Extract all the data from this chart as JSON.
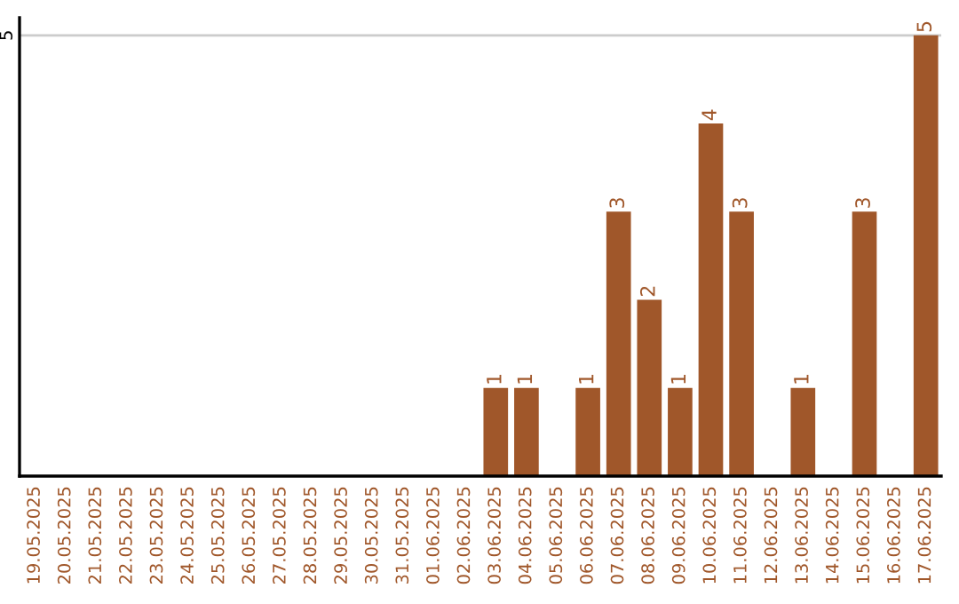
{
  "chart_data": {
    "type": "bar",
    "categories": [
      "19.05.2025",
      "20.05.2025",
      "21.05.2025",
      "22.05.2025",
      "23.05.2025",
      "24.05.2025",
      "25.05.2025",
      "26.05.2025",
      "27.05.2025",
      "28.05.2025",
      "29.05.2025",
      "30.05.2025",
      "31.05.2025",
      "01.06.2025",
      "02.06.2025",
      "03.06.2025",
      "04.06.2025",
      "05.06.2025",
      "06.06.2025",
      "07.06.2025",
      "08.06.2025",
      "09.06.2025",
      "10.06.2025",
      "11.06.2025",
      "12.06.2025",
      "13.06.2025",
      "14.06.2025",
      "15.06.2025",
      "16.06.2025",
      "17.06.2025"
    ],
    "values": [
      null,
      null,
      null,
      null,
      null,
      null,
      null,
      null,
      null,
      null,
      null,
      null,
      null,
      null,
      null,
      1,
      1,
      null,
      1,
      3,
      2,
      1,
      4,
      3,
      null,
      1,
      null,
      3,
      null,
      5
    ],
    "data_labels": true,
    "color": "#a0572a",
    "ylim": [
      0,
      5.2
    ],
    "ref_lines": [
      {
        "axis": "y",
        "value": 5,
        "label": "5",
        "color": "#cccccc"
      }
    ]
  }
}
